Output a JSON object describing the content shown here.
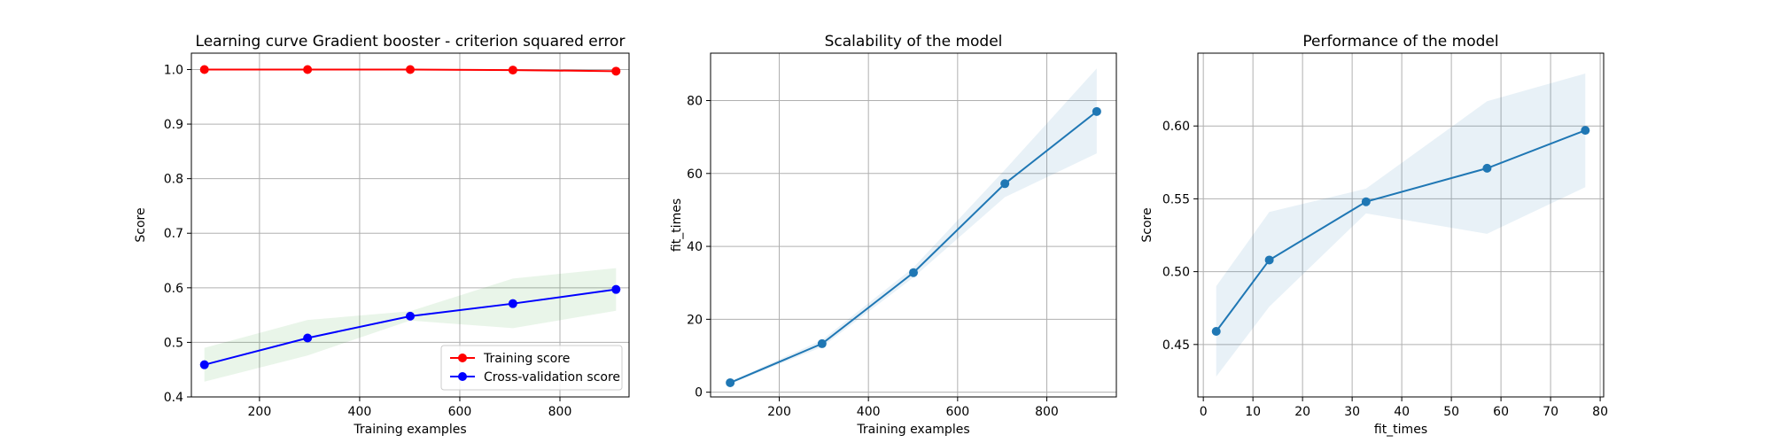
{
  "colors": {
    "training": "#ff0000",
    "cv": "#0000ff",
    "cv_band": "#2ca02c",
    "model": "#1f77b4",
    "grid": "#b0b0b0"
  },
  "chart_data": [
    {
      "type": "line",
      "title": "Learning curve Gradient booster - criterion squared error",
      "xlabel": "Training examples",
      "ylabel": "Score",
      "xlim": [
        64,
        938
      ],
      "ylim": [
        0.4,
        1.03
      ],
      "xticks": [
        200,
        400,
        600,
        800
      ],
      "yticks": [
        0.4,
        0.5,
        0.6,
        0.7,
        0.8,
        0.9,
        1.0
      ],
      "ytick_format": 1,
      "grid": true,
      "legend": "lower-right",
      "series": [
        {
          "name": "Training score",
          "color_key": "training",
          "x": [
            90,
            296,
            501,
            706,
            912
          ],
          "y": [
            1.0,
            1.0,
            1.0,
            0.999,
            0.997
          ]
        },
        {
          "name": "Cross-validation score",
          "color_key": "cv",
          "band_color_key": "cv_band",
          "x": [
            90,
            296,
            501,
            706,
            912
          ],
          "y": [
            0.459,
            0.508,
            0.548,
            0.571,
            0.597
          ],
          "band_low": [
            0.428,
            0.476,
            0.54,
            0.526,
            0.558
          ],
          "band_high": [
            0.49,
            0.541,
            0.557,
            0.617,
            0.636
          ]
        }
      ]
    },
    {
      "type": "line",
      "title": "Scalability of the model",
      "xlabel": "Training examples",
      "ylabel": "fit_times",
      "xlim": [
        46,
        956
      ],
      "ylim": [
        -1.3,
        93
      ],
      "xticks": [
        200,
        400,
        600,
        800
      ],
      "yticks": [
        0,
        20,
        40,
        60,
        80
      ],
      "ytick_format": 0,
      "grid": true,
      "series": [
        {
          "color_key": "model",
          "x": [
            90,
            296,
            501,
            706,
            912
          ],
          "y": [
            2.6,
            13.3,
            32.8,
            57.2,
            77.0
          ],
          "band_low": [
            2.3,
            12.4,
            31.5,
            53.5,
            65.5
          ],
          "band_high": [
            2.9,
            14.3,
            34.2,
            61.0,
            88.8
          ]
        }
      ]
    },
    {
      "type": "line",
      "title": "Performance of the model",
      "xlabel": "fit_times",
      "ylabel": "Score",
      "xlim": [
        -1.1,
        80.7
      ],
      "ylim": [
        0.414,
        0.65
      ],
      "xticks": [
        0,
        10,
        20,
        30,
        40,
        50,
        60,
        70,
        80
      ],
      "yticks": [
        0.45,
        0.5,
        0.55,
        0.6
      ],
      "ytick_format": 2,
      "grid": true,
      "series": [
        {
          "color_key": "model",
          "x": [
            2.6,
            13.3,
            32.8,
            57.2,
            77.0
          ],
          "y": [
            0.459,
            0.508,
            0.548,
            0.571,
            0.597
          ],
          "band_low": [
            0.428,
            0.476,
            0.54,
            0.526,
            0.558
          ],
          "band_high": [
            0.49,
            0.541,
            0.557,
            0.617,
            0.636
          ]
        }
      ]
    }
  ]
}
